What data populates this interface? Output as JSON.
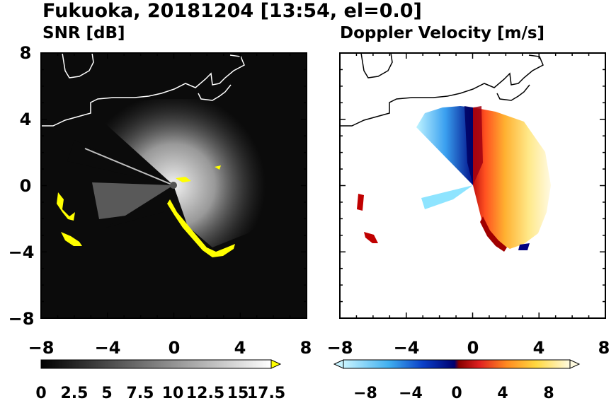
{
  "title": "Fukuoka, 20181204 [13:54, el=0.0]",
  "chart_data": [
    {
      "type": "heatmap",
      "title": "SNR [dB]",
      "xlabel": "",
      "ylabel": "",
      "xlim": [
        -8,
        8
      ],
      "ylim": [
        -8,
        8
      ],
      "x_ticks": [
        "−8",
        "−4",
        "0",
        "4",
        "8"
      ],
      "y_ticks": [
        "8",
        "4",
        "0",
        "−4",
        "−8"
      ],
      "colorbar": {
        "range": [
          0,
          18.5
        ],
        "ticks": [
          "0",
          "2.5",
          "5",
          "7.5",
          "10",
          "12.5",
          "15",
          "17.5"
        ],
        "extend": "max",
        "colors": {
          "low": "#000000",
          "high": "#ffffff",
          "over": "#ffff00"
        }
      }
    },
    {
      "type": "heatmap",
      "title": "Doppler Velocity [m/s]",
      "xlabel": "",
      "ylabel": "",
      "xlim": [
        -8,
        8
      ],
      "ylim": [
        -8,
        8
      ],
      "x_ticks": [
        "−8",
        "−4",
        "0",
        "4",
        "8"
      ],
      "y_ticks": [],
      "colorbar": {
        "range": [
          -10,
          10
        ],
        "ticks": [
          "−8",
          "−4",
          "0",
          "4",
          "8"
        ],
        "extend": "both",
        "colors": {
          "negative": "#0000aa",
          "zero": "#ffffff",
          "positive": "#cc0000"
        }
      }
    }
  ]
}
